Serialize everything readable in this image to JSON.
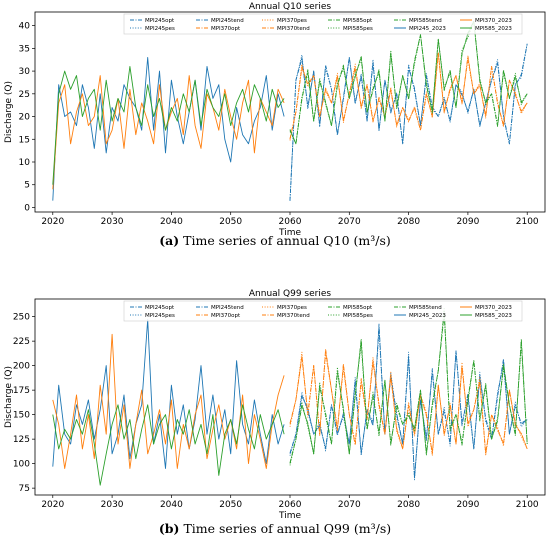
{
  "captions": [
    {
      "label": "(a)",
      "text": "Time series of annual Q10 (m³/s)"
    },
    {
      "label": "(b)",
      "text": "Time series of annual Q99 (m³/s)"
    }
  ],
  "colors": {
    "MPI245": "#1f77b4",
    "MPI370": "#ff7f0e",
    "MPI585": "#2ca02c"
  },
  "legend_entries": [
    {
      "name": "MPI245opt",
      "model": "MPI245",
      "style": "dashdot"
    },
    {
      "name": "MPI245pes",
      "model": "MPI245",
      "style": "dotted"
    },
    {
      "name": "MPI245tend",
      "model": "MPI245",
      "style": "dashdot"
    },
    {
      "name": "MPI370opt",
      "model": "MPI370",
      "style": "dashdot"
    },
    {
      "name": "MPI370pes",
      "model": "MPI370",
      "style": "dotted"
    },
    {
      "name": "MPI370tend",
      "model": "MPI370",
      "style": "dashdot"
    },
    {
      "name": "MPI585opt",
      "model": "MPI585",
      "style": "dashdot"
    },
    {
      "name": "MPI585pes",
      "model": "MPI585",
      "style": "dotted"
    },
    {
      "name": "MPI585tend",
      "model": "MPI585",
      "style": "dashdot"
    },
    {
      "name": "MPI245_2023",
      "model": "MPI245",
      "style": "solid"
    },
    {
      "name": "MPI370_2023",
      "model": "MPI370",
      "style": "solid"
    },
    {
      "name": "MPI585_2023",
      "model": "MPI585",
      "style": "solid"
    }
  ],
  "chart_data": [
    {
      "type": "line",
      "title": "Annual Q10 series",
      "xlabel": "Time",
      "ylabel": "Discharge (Q)",
      "xlim": [
        2017,
        2103
      ],
      "ylim": [
        -1,
        43
      ],
      "xticks": [
        2020,
        2030,
        2040,
        2050,
        2060,
        2070,
        2080,
        2090,
        2100
      ],
      "yticks": [
        0,
        5,
        10,
        15,
        20,
        25,
        30,
        35,
        40
      ],
      "legend": "top-center, 6 columns",
      "grid": false,
      "historical": {
        "years": [
          2020,
          2021,
          2022,
          2023,
          2024,
          2025,
          2026,
          2027,
          2028,
          2029,
          2030,
          2031,
          2032,
          2033,
          2034,
          2035,
          2036,
          2037,
          2038,
          2039,
          2040,
          2041,
          2042,
          2043,
          2044,
          2045,
          2046,
          2047,
          2048,
          2049,
          2050,
          2051,
          2052,
          2053,
          2054,
          2055,
          2056,
          2057,
          2058,
          2059
        ],
        "series": [
          {
            "name": "MPI245_2023",
            "model": "MPI245",
            "values": [
              1.5,
              27,
              20,
              21,
              18,
              27,
              22,
              13,
              25,
              12,
              22,
              19,
              27,
              24,
              22,
              17,
              33,
              17,
              30,
              12,
              28,
              20,
              14,
              21,
              28,
              17,
              31,
              24,
              27,
              15,
              10,
              22,
              16,
              14,
              19,
              22,
              29,
              17,
              25,
              20
            ]
          },
          {
            "name": "MPI370_2023",
            "model": "MPI370",
            "values": [
              4,
              23,
              27,
              14,
              21,
              25,
              18,
              20,
              29,
              14,
              17,
              24,
              13,
              26,
              16,
              23,
              19,
              14,
              27,
              17,
              21,
              24,
              16,
              29,
              18,
              13,
              25,
              22,
              17,
              26,
              20,
              15,
              23,
              28,
              12,
              24,
              21,
              18,
              26,
              23
            ]
          },
          {
            "name": "MPI585_2023",
            "model": "MPI585",
            "values": [
              5,
              25,
              30,
              26,
              29,
              20,
              24,
              26,
              17,
              28,
              19,
              24,
              21,
              31,
              22,
              18,
              27,
              20,
              24,
              17,
              22,
              19,
              25,
              21,
              28,
              18,
              26,
              22,
              20,
              25,
              18,
              23,
              26,
              21,
              27,
              24,
              19,
              26,
              22,
              24
            ]
          }
        ]
      },
      "projection": {
        "years": [
          2060,
          2061,
          2062,
          2063,
          2064,
          2065,
          2066,
          2067,
          2068,
          2069,
          2070,
          2071,
          2072,
          2073,
          2074,
          2075,
          2076,
          2077,
          2078,
          2079,
          2080,
          2081,
          2082,
          2083,
          2084,
          2085,
          2086,
          2087,
          2088,
          2089,
          2090,
          2091,
          2092,
          2093,
          2094,
          2095,
          2096,
          2097,
          2098,
          2099,
          2100
        ],
        "series": [
          {
            "name": "MPI245",
            "model": "MPI245",
            "values": [
              1.5,
              28,
              33,
              22,
              30,
              18,
              31,
              26,
              16,
              24,
              33,
              23,
              29,
              19,
              32,
              17,
              28,
              21,
              25,
              14,
              31,
              26,
              18,
              29,
              22,
              20,
              24,
              19,
              27,
              25,
              21,
              26,
              18,
              23,
              28,
              32,
              20,
              14,
              27,
              29,
              36
            ]
          },
          {
            "name": "MPI370",
            "model": "MPI370",
            "values": [
              15,
              21,
              31,
              27,
              29,
              20,
              26,
              23,
              29,
              19,
              25,
              31,
              22,
              27,
              19,
              24,
              20,
              26,
              18,
              22,
              19,
              22,
              17,
              25,
              20,
              34,
              21,
              26,
              29,
              23,
              33,
              25,
              27,
              20,
              31,
              23,
              18,
              28,
              25,
              21,
              23
            ]
          },
          {
            "name": "MPI585",
            "model": "MPI585",
            "values": [
              17,
              14,
              24,
              30,
              19,
              28,
              23,
              18,
              27,
              31,
              24,
              29,
              33,
              21,
              26,
              30,
              19,
              34,
              22,
              29,
              24,
              32,
              38,
              27,
              21,
              37,
              26,
              30,
              22,
              34,
              38,
              41,
              28,
              23,
              25,
              18,
              30,
              24,
              29,
              23,
              25
            ]
          }
        ]
      }
    },
    {
      "type": "line",
      "title": "Annual Q99 series",
      "xlabel": "Time",
      "ylabel": "Discharge (Q)",
      "xlim": [
        2017,
        2103
      ],
      "ylim": [
        68,
        268
      ],
      "xticks": [
        2020,
        2030,
        2040,
        2050,
        2060,
        2070,
        2080,
        2090,
        2100
      ],
      "yticks": [
        75,
        100,
        125,
        150,
        175,
        200,
        225,
        250
      ],
      "legend": "top-center, 6 columns",
      "grid": false,
      "historical": {
        "years": [
          2020,
          2021,
          2022,
          2023,
          2024,
          2025,
          2026,
          2027,
          2028,
          2029,
          2030,
          2031,
          2032,
          2033,
          2034,
          2035,
          2036,
          2037,
          2038,
          2039,
          2040,
          2041,
          2042,
          2043,
          2044,
          2045,
          2046,
          2047,
          2048,
          2049,
          2050,
          2051,
          2052,
          2053,
          2054,
          2055,
          2056,
          2057,
          2058,
          2059
        ],
        "series": [
          {
            "name": "MPI245_2023",
            "model": "MPI245",
            "values": [
              97,
              180,
              130,
              120,
              160,
              140,
              165,
              125,
              155,
              200,
              110,
              130,
              170,
              105,
              140,
              160,
              247,
              120,
              150,
              95,
              180,
              130,
              160,
              115,
              145,
              200,
              130,
              170,
              125,
              155,
              110,
              205,
              140,
              120,
              165,
              130,
              100,
              150,
              120,
              140
            ]
          },
          {
            "name": "MPI370_2023",
            "model": "MPI370",
            "values": [
              165,
              140,
              95,
              130,
              170,
              115,
              150,
              105,
              180,
              130,
              232,
              120,
              160,
              95,
              140,
              175,
              110,
              130,
              155,
              120,
              165,
              95,
              140,
              115,
              150,
              170,
              105,
              135,
              160,
              125,
              145,
              115,
              170,
              100,
              150,
              125,
              95,
              140,
              170,
              190
            ]
          },
          {
            "name": "MPI585_2023",
            "model": "MPI585",
            "values": [
              150,
              115,
              135,
              125,
              145,
              130,
              155,
              120,
              78,
              110,
              140,
              160,
              125,
              145,
              105,
              135,
              160,
              120,
              140,
              150,
              115,
              145,
              130,
              155,
              120,
              140,
              110,
              150,
              88,
              130,
              145,
              120,
              160,
              135,
              115,
              150,
              125,
              140,
              155,
              130
            ]
          }
        ]
      },
      "projection": {
        "years": [
          2060,
          2061,
          2062,
          2063,
          2064,
          2065,
          2066,
          2067,
          2068,
          2069,
          2070,
          2071,
          2072,
          2073,
          2074,
          2075,
          2076,
          2077,
          2078,
          2079,
          2080,
          2081,
          2082,
          2083,
          2084,
          2085,
          2086,
          2087,
          2088,
          2089,
          2090,
          2091,
          2092,
          2093,
          2094,
          2095,
          2096,
          2097,
          2098,
          2099,
          2100
        ],
        "series": [
          {
            "name": "MPI245",
            "model": "MPI245",
            "values": [
              110,
              130,
              170,
              155,
              130,
              140,
              115,
              160,
              130,
              150,
              120,
              185,
              110,
              155,
              140,
              240,
              130,
              190,
              150,
              120,
              210,
              85,
              165,
              125,
              195,
              130,
              155,
              120,
              215,
              140,
              170,
              115,
              190,
              145,
              125,
              170,
              205,
              130,
              160,
              140,
              145
            ]
          },
          {
            "name": "MPI370",
            "model": "MPI370",
            "values": [
              140,
              165,
              210,
              150,
              200,
              130,
              215,
              175,
              135,
              200,
              150,
              120,
              185,
              145,
              205,
              160,
              130,
              190,
              135,
              115,
              160,
              130,
              170,
              150,
              110,
              180,
              130,
              160,
              120,
              200,
              140,
              155,
              185,
              110,
              150,
              135,
              120,
              175,
              140,
              130,
              115
            ]
          },
          {
            "name": "MPI585",
            "model": "MPI585",
            "values": [
              100,
              125,
              160,
              140,
              110,
              180,
              150,
              120,
              195,
              155,
              110,
              170,
              225,
              135,
              170,
              130,
              185,
              120,
              160,
              140,
              150,
              135,
              175,
              110,
              160,
              195,
              255,
              135,
              150,
              120,
              165,
              205,
              145,
              180,
              125,
              145,
              200,
              160,
              130,
              225,
              120
            ]
          }
        ]
      }
    }
  ]
}
